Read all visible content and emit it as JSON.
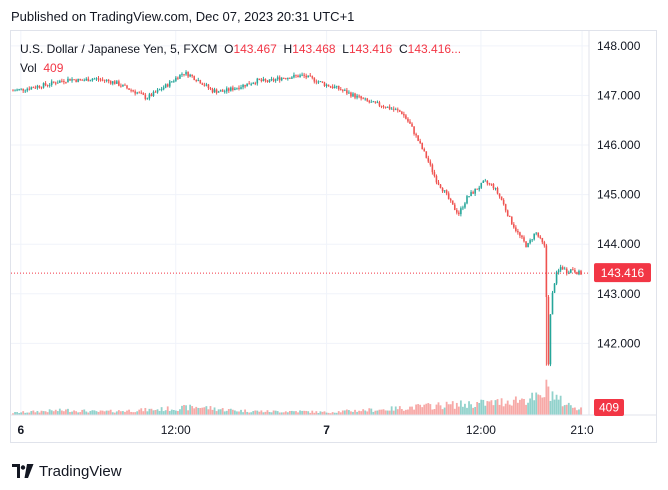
{
  "header": {
    "published_text": "Published on TradingView.com, Dec 07, 2023 20:31 UTC+1"
  },
  "legend": {
    "symbol": "U.S. Dollar / Japanese Yen, 5, FXCM",
    "o_label": "O",
    "o_value": "143.467",
    "h_label": "H",
    "h_value": "143.468",
    "l_label": "L",
    "l_value": "143.416",
    "c_label": "C",
    "c_value": "143.416...",
    "vol_label": "Vol",
    "vol_value": "409"
  },
  "footer": {
    "brand": "TradingView"
  },
  "colors": {
    "up": "#26a69a",
    "down": "#ef5350",
    "price_label": "#f23645",
    "grid": "#f0f3fa",
    "axis_text": "#131722"
  },
  "chart_data": {
    "type": "candlestick",
    "symbol": "USDJPY",
    "interval": "5",
    "ylim": [
      141.2,
      148.2
    ],
    "yticks": [
      142.0,
      143.0,
      144.0,
      145.0,
      146.0,
      147.0,
      148.0
    ],
    "ytick_labels": [
      "142.000",
      "143.000",
      "144.000",
      "145.000",
      "146.000",
      "147.000",
      "148.000"
    ],
    "xticks": [
      {
        "label": "6",
        "pos": 0.017,
        "bold": true
      },
      {
        "label": "12:00",
        "pos": 0.285,
        "bold": false
      },
      {
        "label": "7",
        "pos": 0.546,
        "bold": true
      },
      {
        "label": "12:00",
        "pos": 0.813,
        "bold": false
      },
      {
        "label": "21:0",
        "pos": 0.988,
        "bold": false
      }
    ],
    "last_price": 143.416,
    "last_price_label": "143.416",
    "last_volume_label": "409",
    "price_path": [
      [
        0.0,
        147.1
      ],
      [
        0.02,
        147.13
      ],
      [
        0.04,
        147.18
      ],
      [
        0.06,
        147.22
      ],
      [
        0.08,
        147.28
      ],
      [
        0.1,
        147.33
      ],
      [
        0.12,
        147.3
      ],
      [
        0.14,
        147.34
      ],
      [
        0.16,
        147.31
      ],
      [
        0.18,
        147.26
      ],
      [
        0.2,
        147.15
      ],
      [
        0.22,
        147.05
      ],
      [
        0.235,
        146.95
      ],
      [
        0.25,
        147.05
      ],
      [
        0.27,
        147.2
      ],
      [
        0.29,
        147.38
      ],
      [
        0.3,
        147.46
      ],
      [
        0.31,
        147.42
      ],
      [
        0.33,
        147.28
      ],
      [
        0.35,
        147.1
      ],
      [
        0.37,
        147.08
      ],
      [
        0.39,
        147.15
      ],
      [
        0.41,
        147.22
      ],
      [
        0.43,
        147.3
      ],
      [
        0.45,
        147.28
      ],
      [
        0.47,
        147.35
      ],
      [
        0.49,
        147.38
      ],
      [
        0.51,
        147.4
      ],
      [
        0.53,
        147.32
      ],
      [
        0.55,
        147.22
      ],
      [
        0.57,
        147.15
      ],
      [
        0.59,
        147.05
      ],
      [
        0.61,
        146.95
      ],
      [
        0.63,
        146.85
      ],
      [
        0.65,
        146.8
      ],
      [
        0.67,
        146.72
      ],
      [
        0.685,
        146.65
      ],
      [
        0.7,
        146.4
      ],
      [
        0.715,
        146.05
      ],
      [
        0.73,
        145.7
      ],
      [
        0.745,
        145.3
      ],
      [
        0.76,
        145.05
      ],
      [
        0.775,
        144.75
      ],
      [
        0.785,
        144.62
      ],
      [
        0.8,
        144.95
      ],
      [
        0.815,
        145.1
      ],
      [
        0.83,
        145.25
      ],
      [
        0.845,
        145.18
      ],
      [
        0.86,
        144.9
      ],
      [
        0.875,
        144.5
      ],
      [
        0.89,
        144.2
      ],
      [
        0.905,
        143.95
      ],
      [
        0.92,
        144.25
      ],
      [
        0.93,
        144.05
      ],
      [
        0.938,
        143.9
      ],
      [
        0.94,
        142.1
      ],
      [
        0.943,
        141.55
      ],
      [
        0.947,
        142.8
      ],
      [
        0.955,
        143.35
      ],
      [
        0.965,
        143.55
      ],
      [
        0.975,
        143.45
      ],
      [
        0.985,
        143.5
      ],
      [
        0.995,
        143.42
      ],
      [
        1.0,
        143.416
      ]
    ],
    "volume_path": [
      [
        0.0,
        0.08
      ],
      [
        0.05,
        0.14
      ],
      [
        0.1,
        0.18
      ],
      [
        0.15,
        0.12
      ],
      [
        0.2,
        0.16
      ],
      [
        0.25,
        0.2
      ],
      [
        0.3,
        0.26
      ],
      [
        0.33,
        0.3
      ],
      [
        0.36,
        0.22
      ],
      [
        0.4,
        0.16
      ],
      [
        0.45,
        0.13
      ],
      [
        0.5,
        0.14
      ],
      [
        0.55,
        0.1
      ],
      [
        0.6,
        0.16
      ],
      [
        0.65,
        0.2
      ],
      [
        0.7,
        0.28
      ],
      [
        0.75,
        0.35
      ],
      [
        0.8,
        0.4
      ],
      [
        0.85,
        0.45
      ],
      [
        0.88,
        0.55
      ],
      [
        0.91,
        0.6
      ],
      [
        0.93,
        0.62
      ],
      [
        0.94,
        1.0
      ],
      [
        0.96,
        0.55
      ],
      [
        0.98,
        0.35
      ],
      [
        1.0,
        0.25
      ]
    ]
  }
}
